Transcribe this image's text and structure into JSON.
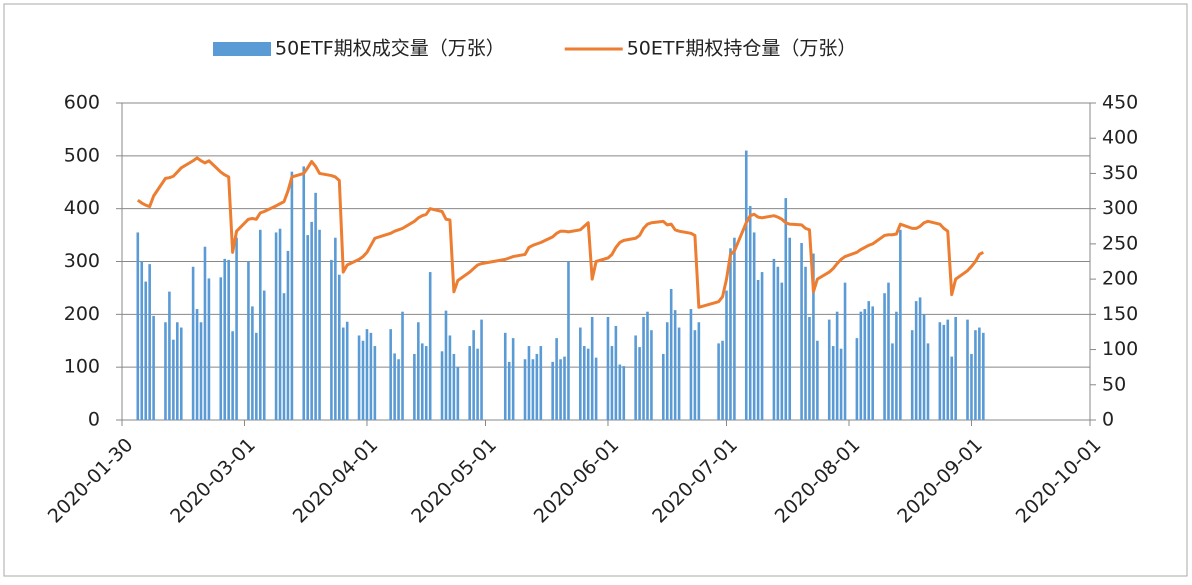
{
  "chart_data": {
    "type": "bar_line",
    "x": [
      "2020-02-03",
      "2020-02-04",
      "2020-02-05",
      "2020-02-06",
      "2020-02-07",
      "2020-02-10",
      "2020-02-11",
      "2020-02-12",
      "2020-02-13",
      "2020-02-14",
      "2020-02-17",
      "2020-02-18",
      "2020-02-19",
      "2020-02-20",
      "2020-02-21",
      "2020-02-24",
      "2020-02-25",
      "2020-02-26",
      "2020-02-27",
      "2020-02-28",
      "2020-03-02",
      "2020-03-03",
      "2020-03-04",
      "2020-03-05",
      "2020-03-06",
      "2020-03-09",
      "2020-03-10",
      "2020-03-11",
      "2020-03-12",
      "2020-03-13",
      "2020-03-16",
      "2020-03-17",
      "2020-03-18",
      "2020-03-19",
      "2020-03-20",
      "2020-03-23",
      "2020-03-24",
      "2020-03-25",
      "2020-03-26",
      "2020-03-27",
      "2020-03-30",
      "2020-03-31",
      "2020-04-01",
      "2020-04-02",
      "2020-04-03",
      "2020-04-07",
      "2020-04-08",
      "2020-04-09",
      "2020-04-10",
      "2020-04-13",
      "2020-04-14",
      "2020-04-15",
      "2020-04-16",
      "2020-04-17",
      "2020-04-20",
      "2020-04-21",
      "2020-04-22",
      "2020-04-23",
      "2020-04-24",
      "2020-04-27",
      "2020-04-28",
      "2020-04-29",
      "2020-04-30",
      "2020-05-06",
      "2020-05-07",
      "2020-05-08",
      "2020-05-11",
      "2020-05-12",
      "2020-05-13",
      "2020-05-14",
      "2020-05-15",
      "2020-05-18",
      "2020-05-19",
      "2020-05-20",
      "2020-05-21",
      "2020-05-22",
      "2020-05-25",
      "2020-05-26",
      "2020-05-27",
      "2020-05-28",
      "2020-05-29",
      "2020-06-01",
      "2020-06-02",
      "2020-06-03",
      "2020-06-04",
      "2020-06-05",
      "2020-06-08",
      "2020-06-09",
      "2020-06-10",
      "2020-06-11",
      "2020-06-12",
      "2020-06-15",
      "2020-06-16",
      "2020-06-17",
      "2020-06-18",
      "2020-06-19",
      "2020-06-22",
      "2020-06-23",
      "2020-06-24",
      "2020-06-29",
      "2020-06-30",
      "2020-07-01",
      "2020-07-02",
      "2020-07-03",
      "2020-07-06",
      "2020-07-07",
      "2020-07-08",
      "2020-07-09",
      "2020-07-10",
      "2020-07-13",
      "2020-07-14",
      "2020-07-15",
      "2020-07-16",
      "2020-07-17",
      "2020-07-20",
      "2020-07-21",
      "2020-07-22",
      "2020-07-23",
      "2020-07-24",
      "2020-07-27",
      "2020-07-28",
      "2020-07-29",
      "2020-07-30",
      "2020-07-31",
      "2020-08-03",
      "2020-08-04",
      "2020-08-05",
      "2020-08-06",
      "2020-08-07",
      "2020-08-10",
      "2020-08-11",
      "2020-08-12",
      "2020-08-13",
      "2020-08-14",
      "2020-08-17",
      "2020-08-18",
      "2020-08-19",
      "2020-08-20",
      "2020-08-21",
      "2020-08-24",
      "2020-08-25",
      "2020-08-26",
      "2020-08-27",
      "2020-08-28",
      "2020-08-31",
      "2020-09-01",
      "2020-09-02",
      "2020-09-03",
      "2020-09-04"
    ],
    "series": [
      {
        "name": "50ETF期权成交量（万张）",
        "type": "bar",
        "color": "#5b9bd5",
        "values": [
          355,
          300,
          262,
          295,
          197,
          185,
          243,
          152,
          185,
          175,
          290,
          210,
          185,
          328,
          268,
          270,
          305,
          303,
          168,
          345,
          300,
          215,
          165,
          360,
          245,
          355,
          362,
          240,
          320,
          470,
          480,
          350,
          375,
          430,
          360,
          303,
          345,
          275,
          175,
          186,
          160,
          150,
          172,
          165,
          140,
          172,
          126,
          115,
          205,
          125,
          185,
          145,
          140,
          280,
          130,
          207,
          160,
          125,
          100,
          140,
          170,
          135,
          190,
          165,
          110,
          155,
          115,
          140,
          115,
          125,
          140,
          110,
          155,
          115,
          120,
          300,
          175,
          140,
          135,
          195,
          118,
          195,
          140,
          178,
          105,
          102,
          160,
          138,
          195,
          205,
          170,
          125,
          185,
          248,
          208,
          175,
          210,
          170,
          185,
          145,
          150,
          245,
          325,
          345,
          510,
          405,
          355,
          265,
          280,
          305,
          290,
          260,
          420,
          345,
          335,
          290,
          195,
          315,
          150,
          190,
          140,
          205,
          135,
          260,
          155,
          205,
          210,
          225,
          215,
          240,
          260,
          145,
          205,
          360,
          170,
          225,
          232,
          200,
          145,
          185,
          180,
          190,
          120,
          195,
          190,
          125,
          170,
          175,
          165
        ]
      },
      {
        "name": "50ETF期权持仓量（万张）",
        "type": "line",
        "axis": "y2",
        "color": "#ed7d31",
        "values": [
          312,
          308,
          305,
          303,
          318,
          343,
          344,
          346,
          352,
          358,
          368,
          372,
          368,
          365,
          368,
          352,
          348,
          345,
          238,
          268,
          285,
          286,
          285,
          294,
          296,
          304,
          307,
          310,
          325,
          345,
          350,
          358,
          367,
          360,
          350,
          347,
          345,
          340,
          210,
          220,
          228,
          232,
          238,
          248,
          258,
          265,
          268,
          270,
          272,
          282,
          287,
          290,
          292,
          300,
          296,
          285,
          284,
          182,
          198,
          210,
          215,
          220,
          222,
          228,
          230,
          232,
          235,
          245,
          248,
          250,
          252,
          260,
          265,
          268,
          268,
          267,
          270,
          275,
          280,
          200,
          225,
          230,
          235,
          245,
          252,
          255,
          258,
          262,
          272,
          278,
          280,
          282,
          277,
          278,
          270,
          268,
          265,
          262,
          160,
          168,
          175,
          200,
          235,
          240,
          280,
          290,
          292,
          288,
          287,
          290,
          288,
          285,
          280,
          278,
          277,
          272,
          270,
          182,
          200,
          210,
          215,
          222,
          228,
          232,
          238,
          242,
          245,
          248,
          250,
          262,
          263,
          263,
          264,
          278,
          272,
          272,
          275,
          280,
          282,
          278,
          272,
          268,
          178,
          200,
          212,
          218,
          225,
          235,
          238
        ]
      }
    ],
    "xlim": [
      "2020-01-30",
      "2020-10-01"
    ],
    "xticks": [
      "2020-01-30",
      "2020-03-01",
      "2020-04-01",
      "2020-05-01",
      "2020-06-01",
      "2020-07-01",
      "2020-08-01",
      "2020-09-01",
      "2020-10-01"
    ],
    "ylim": [
      0,
      600
    ],
    "yticks": [
      0,
      100,
      200,
      300,
      400,
      500,
      600
    ],
    "y2lim": [
      0,
      450
    ],
    "y2ticks": [
      0,
      50,
      100,
      150,
      200,
      250,
      300,
      350,
      400,
      450
    ],
    "grid": true,
    "legend": "top"
  }
}
